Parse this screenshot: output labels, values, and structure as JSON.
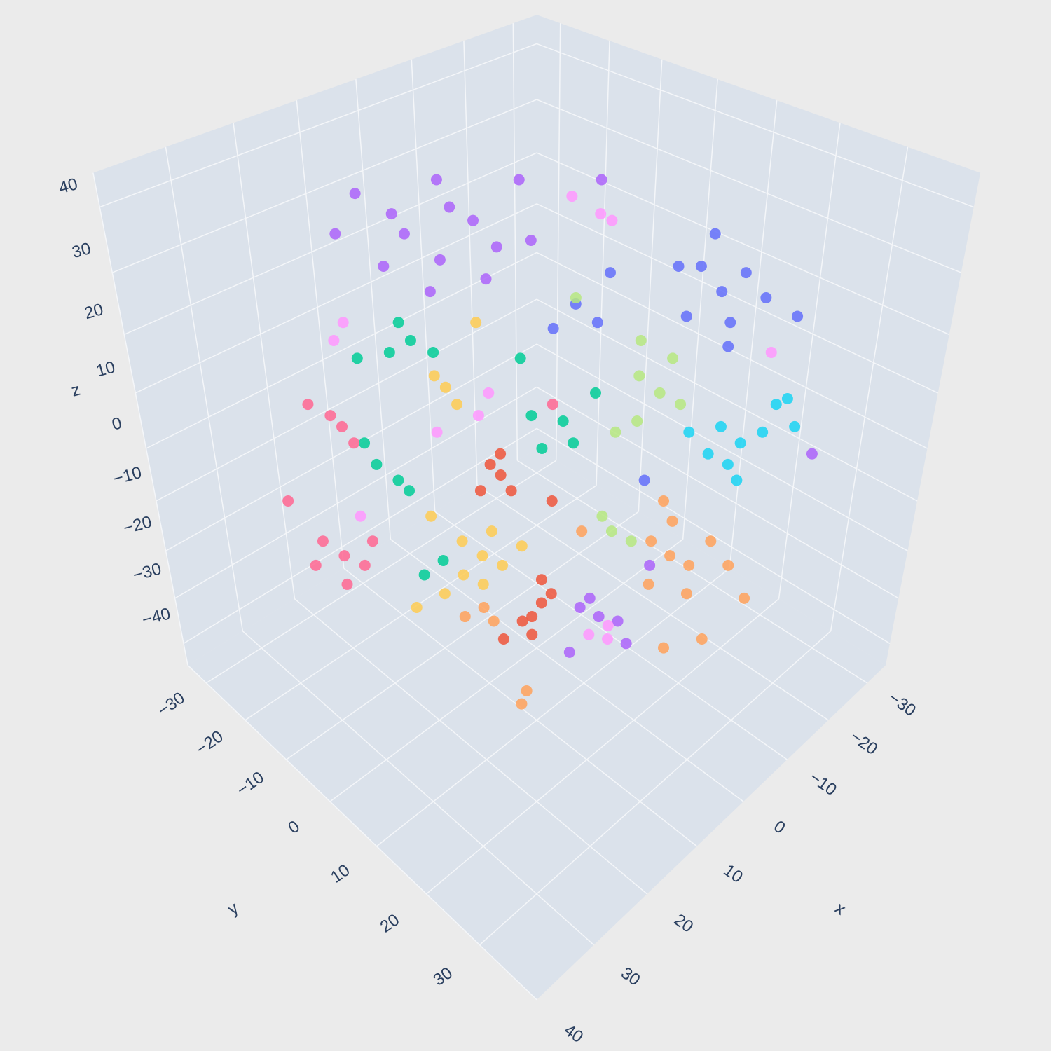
{
  "chart_data": {
    "type": "scatter3d",
    "x_label": "x",
    "y_label": "y",
    "z_label": "z",
    "xlim": [
      -35,
      40
    ],
    "ylim": [
      -35,
      40
    ],
    "zlim": [
      -45,
      45
    ],
    "xticks": [
      {
        "value": -30,
        "label": "−30"
      },
      {
        "value": -20,
        "label": "−20"
      },
      {
        "value": -10,
        "label": "−10"
      },
      0,
      10,
      20,
      30,
      40
    ],
    "yticks": [
      {
        "value": -30,
        "label": "−30"
      },
      {
        "value": -20,
        "label": "−20"
      },
      {
        "value": -10,
        "label": "−10"
      },
      0,
      10,
      20,
      30
    ],
    "zticks": [
      {
        "value": -40,
        "label": "−40"
      },
      {
        "value": -30,
        "label": "−30"
      },
      {
        "value": -20,
        "label": "−20"
      },
      {
        "value": -10,
        "label": "−10"
      },
      0,
      10,
      20,
      30,
      40
    ],
    "grid": true,
    "series": [
      {
        "color": "#ab63fa",
        "x": [
          11,
          14,
          8,
          16,
          7,
          12,
          10,
          15,
          6,
          18,
          11,
          4,
          -3,
          3,
          20,
          -4,
          -2,
          -6,
          -3,
          -7,
          -1,
          -9,
          -24
        ],
        "y": [
          -6,
          -9,
          -3,
          -11,
          -2,
          -7,
          -5,
          -10,
          -1,
          -13,
          -6,
          1,
          8,
          2,
          -15,
          9,
          7,
          11,
          8,
          12,
          6,
          14,
          29
        ],
        "z": [
          32,
          36,
          38,
          31,
          29,
          27,
          40,
          39,
          34,
          42,
          44,
          44,
          44,
          35,
          36,
          -34,
          -32,
          -35,
          -30,
          -40,
          -42,
          -23,
          -1
        ]
      },
      {
        "color": "#636efa",
        "x": [
          -14,
          -12,
          -16,
          -11,
          -15,
          -18,
          -13,
          -15,
          -10,
          -21,
          -1,
          -3,
          1,
          -4,
          -8
        ],
        "y": [
          19,
          17,
          21,
          16,
          20,
          23,
          18,
          20,
          15,
          26,
          6,
          8,
          4,
          9,
          13
        ],
        "z": [
          27,
          31,
          30,
          23,
          22,
          26,
          36,
          18,
          31,
          23,
          25,
          22,
          21,
          30,
          -6
        ]
      },
      {
        "color": "#00cc96",
        "x": [
          14,
          15,
          12,
          16,
          18,
          19,
          16,
          15,
          19,
          0,
          -1,
          3,
          -3,
          2,
          14,
          12,
          4
        ],
        "y": [
          -9,
          -10,
          -7,
          -11,
          -13,
          -14,
          -11,
          -10,
          -14,
          5,
          6,
          2,
          8,
          3,
          -9,
          -7,
          1
        ],
        "z": [
          19,
          22,
          17,
          17,
          -3,
          1,
          -6,
          -8,
          16,
          5,
          1,
          6,
          10,
          0,
          -25,
          -22,
          16
        ]
      },
      {
        "color": "#B6E880",
        "x": [
          -9,
          -7,
          -11,
          -7,
          -10,
          -5,
          -1,
          -5,
          -4,
          -7,
          -7
        ],
        "y": [
          14,
          12,
          16,
          12,
          15,
          10,
          6,
          10,
          9,
          12,
          12
        ],
        "z": [
          10,
          13,
          8,
          5,
          16,
          3,
          26,
          -16,
          -13,
          -18,
          19
        ]
      },
      {
        "color": "#19d3f3",
        "x": [
          -17,
          -15,
          -19,
          -16,
          -20,
          -22,
          -14,
          -17,
          -21,
          -12
        ],
        "y": [
          22,
          20,
          24,
          21,
          25,
          27,
          19,
          22,
          26,
          17
        ],
        "z": [
          1,
          4,
          3,
          -3,
          8,
          4,
          -1,
          -6,
          9,
          3
        ]
      },
      {
        "color": "#FF6692",
        "x": [
          21,
          22,
          20,
          24,
          22,
          24,
          20,
          25,
          22,
          19,
          1,
          27
        ],
        "y": [
          -16,
          -17,
          -15,
          -19,
          -17,
          -19,
          -15,
          -20,
          -17,
          -14,
          4,
          -22
        ],
        "z": [
          4,
          6,
          1,
          8,
          -21,
          -18,
          -23,
          -23,
          -27,
          -18,
          8,
          -10
        ]
      },
      {
        "color": "#FECB52",
        "x": [
          8,
          10,
          6,
          10,
          7,
          4,
          12,
          8,
          11,
          12,
          10,
          8,
          13,
          15
        ],
        "y": [
          -3,
          -5,
          -1,
          -5,
          -2,
          1,
          -7,
          -3,
          -6,
          -7,
          -5,
          -3,
          -8,
          -10
        ],
        "z": [
          -21,
          -18,
          -23,
          -25,
          -16,
          -19,
          -29,
          -27,
          11,
          13,
          8,
          22,
          -13,
          -32
        ]
      },
      {
        "color": "#EF553B",
        "x": [
          6,
          7,
          5,
          8,
          6,
          3,
          4,
          2,
          2,
          3,
          1,
          1,
          6
        ],
        "y": [
          -1,
          -2,
          0,
          -3,
          -1,
          2,
          1,
          3,
          3,
          2,
          4,
          4,
          -1
        ],
        "z": [
          -5,
          -3,
          -8,
          -8,
          -1,
          -34,
          -35,
          -31,
          -26,
          -38,
          -29,
          -10,
          -39
        ]
      },
      {
        "color": "#FFA15A",
        "x": [
          -11,
          -9,
          -13,
          -11,
          -15,
          -9,
          -13,
          -17,
          -10,
          -2,
          8,
          10,
          7,
          13,
          14,
          -19,
          -11,
          -15
        ],
        "y": [
          16,
          14,
          18,
          16,
          20,
          14,
          18,
          22,
          15,
          7,
          -3,
          -5,
          -2,
          11,
          11,
          24,
          16,
          20
        ],
        "z": [
          -21,
          -18,
          -23,
          -14,
          -18,
          -27,
          -29,
          -23,
          -10,
          -16,
          -32,
          -34,
          -35,
          -35,
          -37,
          -30,
          -41,
          -39
        ]
      },
      {
        "color": "#FF97FF",
        "x": [
          -5,
          -3,
          -5,
          -3,
          0,
          -4,
          20,
          21,
          7,
          8,
          20,
          -19,
          12
        ],
        "y": [
          10,
          8,
          10,
          8,
          6,
          9,
          -15,
          -16,
          -2,
          -3,
          -15,
          24,
          -7
        ],
        "z": [
          -36,
          -38,
          -39,
          39,
          42,
          38,
          22,
          19,
          10,
          6,
          -13,
          17,
          3
        ]
      }
    ]
  }
}
